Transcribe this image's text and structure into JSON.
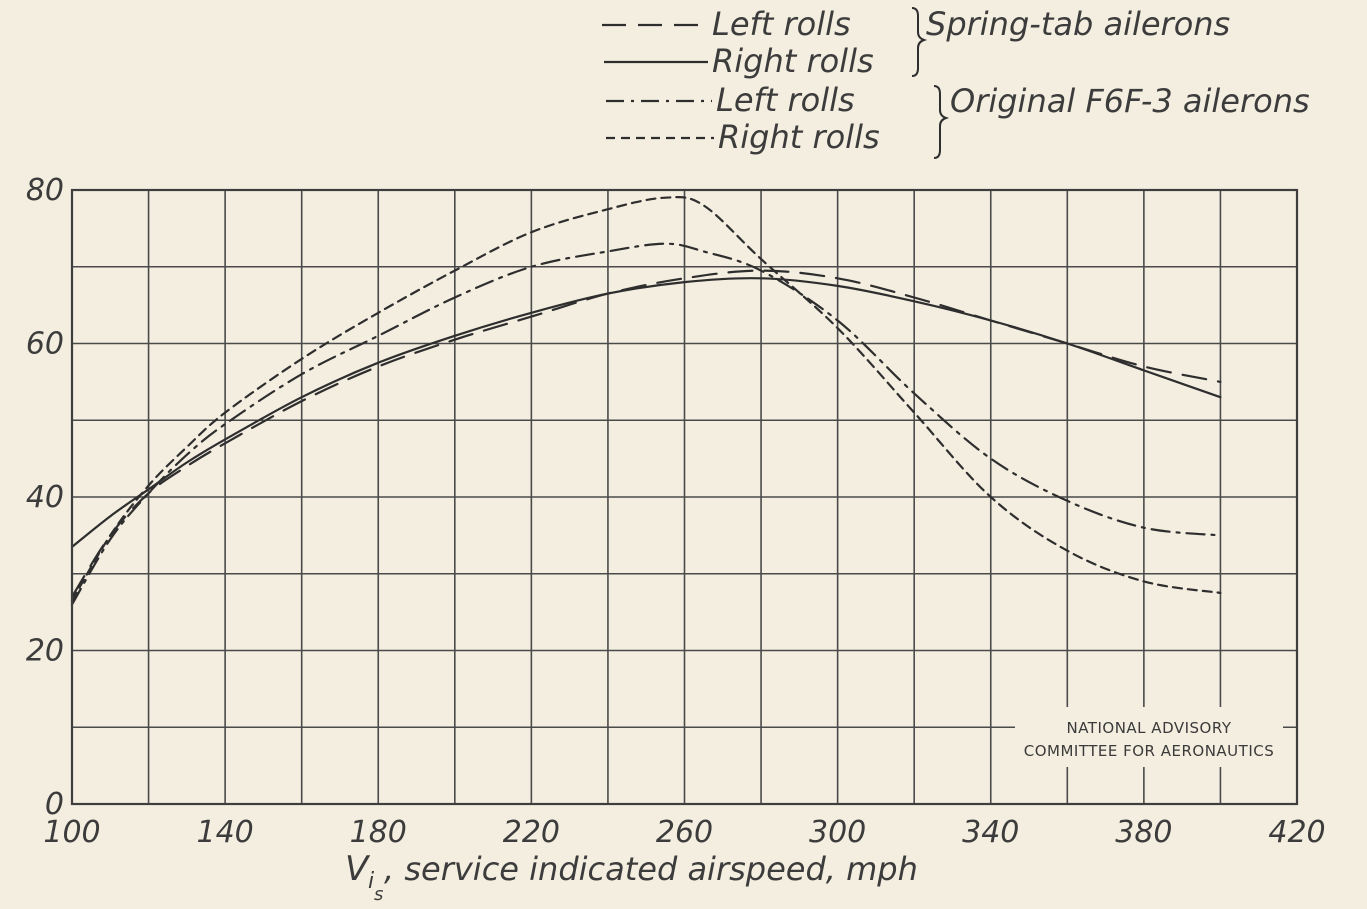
{
  "chart_data": {
    "type": "line",
    "xlabel_main": "V",
    "xlabel_sub": "i",
    "xlabel_subsub": "s",
    "xlabel_rest": ", service indicated airspeed, mph",
    "ylabel": "",
    "xlim": [
      100,
      420
    ],
    "ylim": [
      0,
      80
    ],
    "x_ticks": [
      100,
      140,
      180,
      220,
      260,
      300,
      340,
      380,
      420
    ],
    "y_ticks": [
      0,
      20,
      40,
      60,
      80
    ],
    "grid": true,
    "legend": {
      "placement": "top-center",
      "entries": [
        {
          "label": "Left rolls",
          "dash": "long"
        },
        {
          "label": "Right rolls",
          "dash": "solid"
        },
        {
          "label": "Left rolls",
          "dash": "dashdot"
        },
        {
          "label": "Right rolls",
          "dash": "short"
        }
      ],
      "groups": [
        {
          "label": "Spring-tab ailerons"
        },
        {
          "label": "Original F6F-3 ailerons"
        }
      ]
    },
    "series": [
      {
        "dash": "long",
        "x": [
          100,
          110,
          120,
          130,
          140,
          160,
          180,
          200,
          220,
          240,
          260,
          280,
          300,
          320,
          340,
          360,
          380,
          400
        ],
        "y": [
          27,
          35,
          40.5,
          44,
          47,
          52.5,
          57,
          60.5,
          63.5,
          66.5,
          68.5,
          69.5,
          68.5,
          66,
          63,
          60,
          57,
          55
        ]
      },
      {
        "dash": "solid",
        "x": [
          100,
          110,
          120,
          130,
          140,
          160,
          180,
          200,
          220,
          240,
          260,
          280,
          300,
          320,
          340,
          360,
          380,
          400
        ],
        "y": [
          33.5,
          37.5,
          41,
          44.5,
          47.5,
          53,
          57.5,
          61,
          64,
          66.5,
          68,
          68.5,
          67.5,
          65.5,
          63,
          60,
          56.5,
          53
        ]
      },
      {
        "dash": "dashdot",
        "x": [
          100,
          110,
          120,
          130,
          140,
          160,
          180,
          200,
          220,
          240,
          255,
          265,
          280,
          300,
          320,
          340,
          360,
          380,
          400
        ],
        "y": [
          26,
          34.5,
          40.5,
          45.5,
          49.5,
          56,
          61,
          66,
          70,
          72,
          73,
          72,
          69.5,
          63,
          53.5,
          45,
          39.5,
          36,
          35
        ]
      },
      {
        "dash": "short",
        "x": [
          100,
          110,
          120,
          130,
          140,
          160,
          180,
          200,
          220,
          240,
          255,
          265,
          280,
          300,
          320,
          340,
          360,
          380,
          400
        ],
        "y": [
          26.5,
          35,
          41.5,
          46.5,
          51,
          58,
          64,
          69.5,
          74.5,
          77.5,
          79,
          78,
          71,
          62,
          51,
          40,
          33,
          29,
          27.5
        ]
      }
    ],
    "annotation_lines": [
      "NATIONAL ADVISORY",
      "COMMITTEE FOR AERONAUTICS"
    ]
  }
}
